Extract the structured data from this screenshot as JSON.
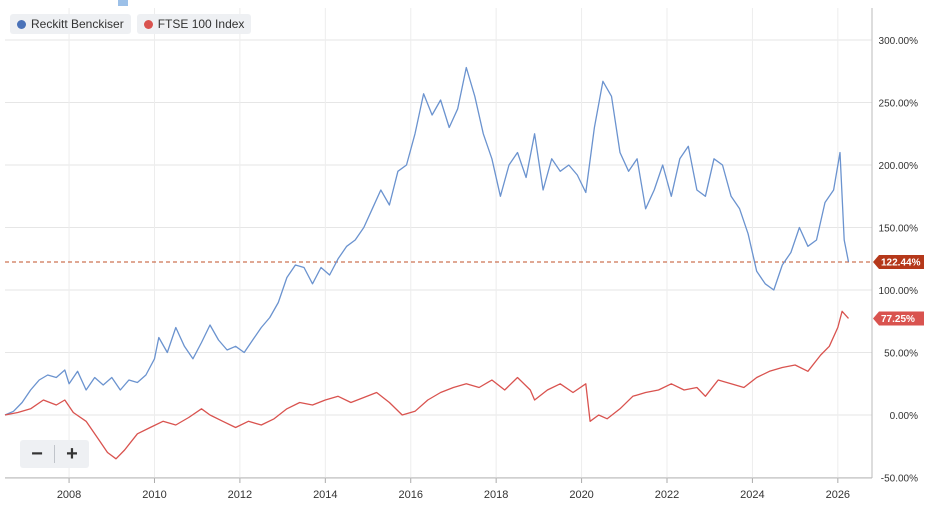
{
  "legend": {
    "items": [
      {
        "label": "Reckitt Benckiser",
        "color": "#4a72b8"
      },
      {
        "label": "FTSE 100 Index",
        "color": "#d9534f"
      }
    ]
  },
  "zoom": {
    "minus_label": "−",
    "plus_label": "+"
  },
  "chart_data": {
    "type": "line",
    "x_ticks": [
      "2008",
      "2010",
      "2012",
      "2014",
      "2016",
      "2018",
      "2020",
      "2022",
      "2024",
      "2026"
    ],
    "y_ticks": [
      "300.00%",
      "250.00%",
      "200.00%",
      "150.00%",
      "100.00%",
      "50.00%",
      "0.00%",
      "-50.00%"
    ],
    "ylim": [
      -50,
      320
    ],
    "xlim": [
      2006.5,
      2026.8
    ],
    "reference_line": {
      "value": 122.44,
      "color": "#c0502a"
    },
    "series": [
      {
        "name": "Reckitt Benckiser",
        "color": "#6b93cf",
        "last_label": "122.44%",
        "label_color": "#b5381a",
        "points": [
          [
            2006.5,
            0
          ],
          [
            2006.7,
            3
          ],
          [
            2006.9,
            10
          ],
          [
            2007.1,
            20
          ],
          [
            2007.3,
            28
          ],
          [
            2007.5,
            32
          ],
          [
            2007.7,
            30
          ],
          [
            2007.9,
            36
          ],
          [
            2008.0,
            25
          ],
          [
            2008.2,
            35
          ],
          [
            2008.4,
            20
          ],
          [
            2008.6,
            30
          ],
          [
            2008.8,
            24
          ],
          [
            2009.0,
            30
          ],
          [
            2009.2,
            20
          ],
          [
            2009.4,
            28
          ],
          [
            2009.6,
            26
          ],
          [
            2009.8,
            32
          ],
          [
            2010.0,
            45
          ],
          [
            2010.1,
            62
          ],
          [
            2010.3,
            50
          ],
          [
            2010.5,
            70
          ],
          [
            2010.7,
            55
          ],
          [
            2010.9,
            45
          ],
          [
            2011.1,
            58
          ],
          [
            2011.3,
            72
          ],
          [
            2011.5,
            60
          ],
          [
            2011.7,
            52
          ],
          [
            2011.9,
            55
          ],
          [
            2012.1,
            50
          ],
          [
            2012.3,
            60
          ],
          [
            2012.5,
            70
          ],
          [
            2012.7,
            78
          ],
          [
            2012.9,
            90
          ],
          [
            2013.1,
            110
          ],
          [
            2013.3,
            120
          ],
          [
            2013.5,
            118
          ],
          [
            2013.7,
            105
          ],
          [
            2013.9,
            118
          ],
          [
            2014.1,
            112
          ],
          [
            2014.3,
            125
          ],
          [
            2014.5,
            135
          ],
          [
            2014.7,
            140
          ],
          [
            2014.9,
            150
          ],
          [
            2015.1,
            165
          ],
          [
            2015.3,
            180
          ],
          [
            2015.5,
            168
          ],
          [
            2015.7,
            195
          ],
          [
            2015.9,
            200
          ],
          [
            2016.1,
            225
          ],
          [
            2016.3,
            257
          ],
          [
            2016.5,
            240
          ],
          [
            2016.7,
            252
          ],
          [
            2016.9,
            230
          ],
          [
            2017.1,
            245
          ],
          [
            2017.3,
            278
          ],
          [
            2017.5,
            255
          ],
          [
            2017.7,
            225
          ],
          [
            2017.9,
            205
          ],
          [
            2018.1,
            175
          ],
          [
            2018.3,
            200
          ],
          [
            2018.5,
            210
          ],
          [
            2018.7,
            190
          ],
          [
            2018.9,
            225
          ],
          [
            2019.1,
            180
          ],
          [
            2019.3,
            205
          ],
          [
            2019.5,
            195
          ],
          [
            2019.7,
            200
          ],
          [
            2019.9,
            192
          ],
          [
            2020.1,
            178
          ],
          [
            2020.3,
            230
          ],
          [
            2020.5,
            267
          ],
          [
            2020.7,
            255
          ],
          [
            2020.9,
            210
          ],
          [
            2021.1,
            195
          ],
          [
            2021.3,
            205
          ],
          [
            2021.5,
            165
          ],
          [
            2021.7,
            180
          ],
          [
            2021.9,
            200
          ],
          [
            2022.1,
            175
          ],
          [
            2022.3,
            205
          ],
          [
            2022.5,
            215
          ],
          [
            2022.7,
            180
          ],
          [
            2022.9,
            175
          ],
          [
            2023.1,
            205
          ],
          [
            2023.3,
            200
          ],
          [
            2023.5,
            175
          ],
          [
            2023.7,
            165
          ],
          [
            2023.9,
            145
          ],
          [
            2024.1,
            115
          ],
          [
            2024.3,
            105
          ],
          [
            2024.5,
            100
          ],
          [
            2024.7,
            120
          ],
          [
            2024.9,
            130
          ],
          [
            2025.1,
            150
          ],
          [
            2025.3,
            135
          ],
          [
            2025.5,
            140
          ],
          [
            2025.7,
            170
          ],
          [
            2025.9,
            180
          ],
          [
            2026.05,
            210
          ],
          [
            2026.15,
            140
          ],
          [
            2026.25,
            122.44
          ]
        ]
      },
      {
        "name": "FTSE 100 Index",
        "color": "#d9534f",
        "last_label": "77.25%",
        "label_color": "#d9534f",
        "points": [
          [
            2006.5,
            0
          ],
          [
            2006.8,
            2
          ],
          [
            2007.1,
            5
          ],
          [
            2007.4,
            12
          ],
          [
            2007.7,
            8
          ],
          [
            2007.9,
            12
          ],
          [
            2008.1,
            2
          ],
          [
            2008.4,
            -5
          ],
          [
            2008.7,
            -20
          ],
          [
            2008.9,
            -30
          ],
          [
            2009.1,
            -35
          ],
          [
            2009.3,
            -28
          ],
          [
            2009.6,
            -15
          ],
          [
            2009.9,
            -10
          ],
          [
            2010.2,
            -5
          ],
          [
            2010.5,
            -8
          ],
          [
            2010.8,
            -2
          ],
          [
            2011.1,
            5
          ],
          [
            2011.3,
            0
          ],
          [
            2011.6,
            -5
          ],
          [
            2011.9,
            -10
          ],
          [
            2012.2,
            -5
          ],
          [
            2012.5,
            -8
          ],
          [
            2012.8,
            -3
          ],
          [
            2013.1,
            5
          ],
          [
            2013.4,
            10
          ],
          [
            2013.7,
            8
          ],
          [
            2014.0,
            12
          ],
          [
            2014.3,
            15
          ],
          [
            2014.6,
            10
          ],
          [
            2014.9,
            14
          ],
          [
            2015.2,
            18
          ],
          [
            2015.5,
            10
          ],
          [
            2015.8,
            0
          ],
          [
            2016.1,
            3
          ],
          [
            2016.4,
            12
          ],
          [
            2016.7,
            18
          ],
          [
            2017.0,
            22
          ],
          [
            2017.3,
            25
          ],
          [
            2017.6,
            22
          ],
          [
            2017.9,
            28
          ],
          [
            2018.2,
            20
          ],
          [
            2018.5,
            30
          ],
          [
            2018.8,
            20
          ],
          [
            2018.9,
            12
          ],
          [
            2019.2,
            20
          ],
          [
            2019.5,
            25
          ],
          [
            2019.8,
            18
          ],
          [
            2020.1,
            25
          ],
          [
            2020.2,
            -5
          ],
          [
            2020.4,
            0
          ],
          [
            2020.6,
            -3
          ],
          [
            2020.9,
            5
          ],
          [
            2021.2,
            15
          ],
          [
            2021.5,
            18
          ],
          [
            2021.8,
            20
          ],
          [
            2022.1,
            25
          ],
          [
            2022.4,
            20
          ],
          [
            2022.7,
            22
          ],
          [
            2022.9,
            15
          ],
          [
            2023.2,
            28
          ],
          [
            2023.5,
            25
          ],
          [
            2023.8,
            22
          ],
          [
            2024.1,
            30
          ],
          [
            2024.4,
            35
          ],
          [
            2024.7,
            38
          ],
          [
            2025.0,
            40
          ],
          [
            2025.3,
            35
          ],
          [
            2025.6,
            48
          ],
          [
            2025.8,
            55
          ],
          [
            2026.0,
            70
          ],
          [
            2026.1,
            83
          ],
          [
            2026.25,
            77.25
          ]
        ]
      }
    ]
  }
}
